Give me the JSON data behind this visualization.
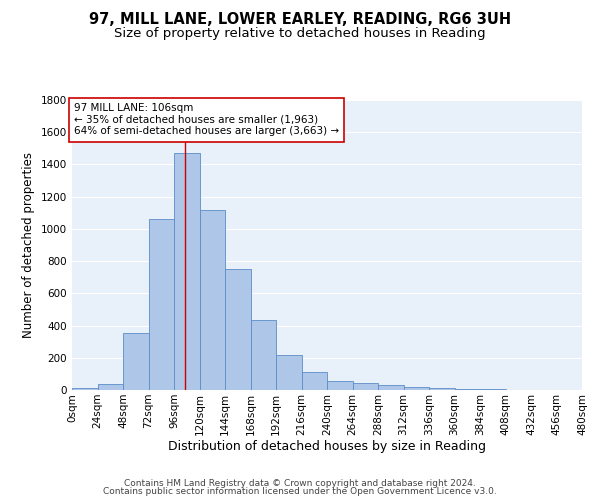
{
  "title": "97, MILL LANE, LOWER EARLEY, READING, RG6 3UH",
  "subtitle": "Size of property relative to detached houses in Reading",
  "xlabel": "Distribution of detached houses by size in Reading",
  "ylabel": "Number of detached properties",
  "bar_color": "#aec6e8",
  "bar_edge_color": "#5b8dc8",
  "background_color": "#e8f0fa",
  "grid_color": "white",
  "bin_edges": [
    0,
    24,
    48,
    72,
    96,
    120,
    144,
    168,
    192,
    216,
    240,
    264,
    288,
    312,
    336,
    360,
    384,
    408,
    432,
    456,
    480
  ],
  "bar_heights": [
    10,
    35,
    355,
    1060,
    1470,
    1115,
    750,
    435,
    220,
    110,
    55,
    45,
    30,
    17,
    12,
    6,
    4,
    3,
    2,
    1
  ],
  "property_size": 106,
  "vline_color": "#cc0000",
  "annotation_text": "97 MILL LANE: 106sqm\n← 35% of detached houses are smaller (1,963)\n64% of semi-detached houses are larger (3,663) →",
  "annotation_box_color": "white",
  "annotation_box_edge": "#cc0000",
  "ylim": [
    0,
    1800
  ],
  "yticks": [
    0,
    200,
    400,
    600,
    800,
    1000,
    1200,
    1400,
    1600,
    1800
  ],
  "xtick_labels": [
    "0sqm",
    "24sqm",
    "48sqm",
    "72sqm",
    "96sqm",
    "120sqm",
    "144sqm",
    "168sqm",
    "192sqm",
    "216sqm",
    "240sqm",
    "264sqm",
    "288sqm",
    "312sqm",
    "336sqm",
    "360sqm",
    "384sqm",
    "408sqm",
    "432sqm",
    "456sqm",
    "480sqm"
  ],
  "footnote1": "Contains HM Land Registry data © Crown copyright and database right 2024.",
  "footnote2": "Contains public sector information licensed under the Open Government Licence v3.0.",
  "title_fontsize": 10.5,
  "subtitle_fontsize": 9.5,
  "xlabel_fontsize": 9,
  "ylabel_fontsize": 8.5,
  "tick_fontsize": 7.5,
  "footnote_fontsize": 6.5,
  "annotation_fontsize": 7.5
}
